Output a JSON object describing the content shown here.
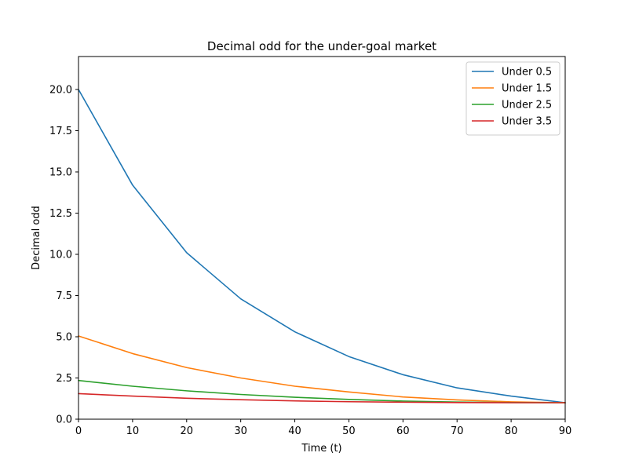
{
  "chart_data": {
    "type": "line",
    "title": "Decimal odd for the under-goal market",
    "xlabel": "Time (t)",
    "ylabel": "Decimal odd",
    "xlim": [
      0,
      90
    ],
    "ylim": [
      0,
      22
    ],
    "xticks": [
      0,
      10,
      20,
      30,
      40,
      50,
      60,
      70,
      80,
      90
    ],
    "yticks": [
      "0.0",
      "2.5",
      "5.0",
      "7.5",
      "10.0",
      "12.5",
      "15.0",
      "17.5",
      "20.0"
    ],
    "grid": false,
    "legend_position": "top-right",
    "x": [
      0,
      10,
      20,
      30,
      40,
      50,
      60,
      70,
      80,
      90
    ],
    "series": [
      {
        "name": "Under 0.5",
        "color": "#1f77b4",
        "values": [
          20.0,
          14.2,
          10.1,
          7.3,
          5.3,
          3.8,
          2.7,
          1.9,
          1.4,
          1.0
        ]
      },
      {
        "name": "Under 1.5",
        "color": "#ff7f0e",
        "values": [
          5.05,
          3.98,
          3.13,
          2.5,
          2.0,
          1.65,
          1.35,
          1.17,
          1.05,
          1.0
        ]
      },
      {
        "name": "Under 2.5",
        "color": "#2ca02c",
        "values": [
          2.35,
          2.0,
          1.72,
          1.5,
          1.33,
          1.2,
          1.1,
          1.04,
          1.01,
          1.0
        ]
      },
      {
        "name": "Under 3.5",
        "color": "#d62728",
        "values": [
          1.55,
          1.4,
          1.27,
          1.18,
          1.11,
          1.06,
          1.03,
          1.01,
          1.0,
          1.0
        ]
      }
    ]
  }
}
